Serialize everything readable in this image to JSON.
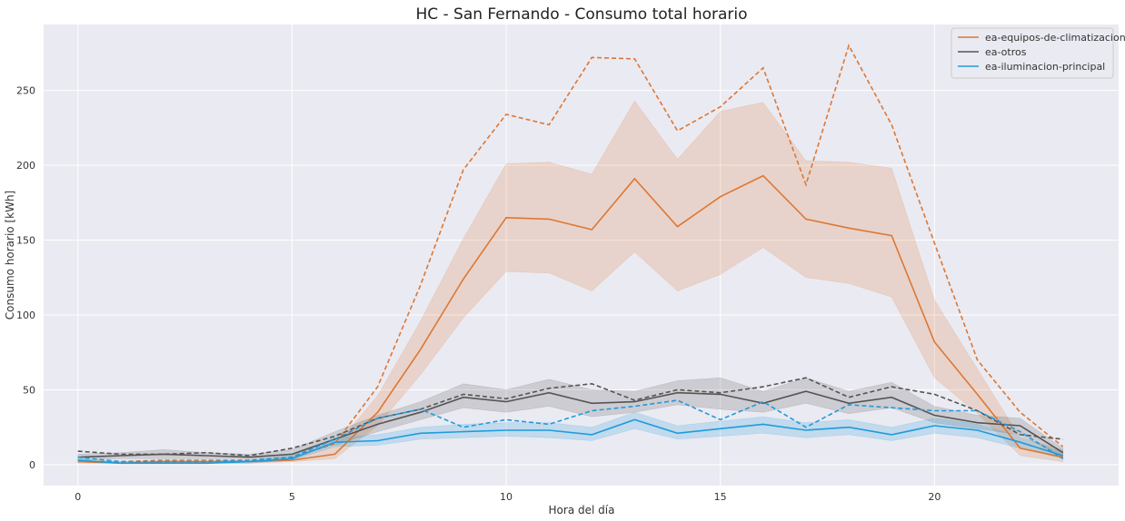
{
  "chart_data": {
    "type": "line",
    "title": "HC - San Fernando - Consumo total horario",
    "xlabel": "Hora del día",
    "ylabel": "Consumo horario [kWh]",
    "xlim": [
      -0.8,
      24.3
    ],
    "ylim": [
      -14,
      294
    ],
    "xticks": [
      0,
      5,
      10,
      15,
      20
    ],
    "yticks": [
      0,
      50,
      100,
      150,
      200,
      250
    ],
    "grid": true,
    "background": "#eaeaf2",
    "legend_position": "top-right",
    "x": [
      0,
      1,
      2,
      3,
      4,
      5,
      6,
      7,
      8,
      9,
      10,
      11,
      12,
      13,
      14,
      15,
      16,
      17,
      18,
      19,
      20,
      21,
      22,
      23
    ],
    "series": [
      {
        "name": "ea-equipos-de-climatizacion",
        "color": "#dd7733",
        "mean": [
          2,
          1,
          2,
          2,
          2,
          3,
          7,
          35,
          77,
          124,
          165,
          164,
          157,
          191,
          159,
          179,
          193,
          164,
          158,
          153,
          82,
          47,
          11,
          5
        ],
        "lower": [
          1,
          1,
          1,
          1,
          1,
          2,
          4,
          26,
          60,
          98,
          129,
          128,
          116,
          142,
          116,
          127,
          145,
          125,
          121,
          112,
          58,
          34,
          6,
          2
        ],
        "upper": [
          3,
          2,
          3,
          3,
          3,
          5,
          12,
          46,
          96,
          151,
          201,
          202,
          194,
          243,
          204,
          236,
          242,
          203,
          202,
          198,
          110,
          64,
          18,
          10
        ],
        "max": [
          2,
          2,
          3,
          3,
          3,
          5,
          14,
          52,
          120,
          197,
          234,
          227,
          272,
          271,
          223,
          239,
          265,
          187,
          280,
          227,
          148,
          70,
          35,
          12
        ]
      },
      {
        "name": "ea-otros",
        "color": "#555555",
        "mean": [
          5,
          6,
          7,
          6,
          5,
          7,
          17,
          27,
          35,
          45,
          42,
          48,
          41,
          42,
          48,
          47,
          41,
          49,
          41,
          45,
          33,
          28,
          26,
          8
        ],
        "lower": [
          3,
          4,
          4,
          4,
          4,
          5,
          13,
          22,
          30,
          38,
          35,
          39,
          32,
          35,
          40,
          37,
          35,
          41,
          34,
          38,
          28,
          24,
          20,
          5
        ],
        "upper": [
          7,
          8,
          10,
          8,
          7,
          10,
          22,
          33,
          42,
          54,
          50,
          57,
          50,
          49,
          56,
          58,
          49,
          58,
          49,
          55,
          39,
          33,
          31,
          11
        ],
        "max": [
          9,
          7,
          7,
          8,
          6,
          11,
          19,
          31,
          37,
          47,
          44,
          51,
          54,
          43,
          50,
          48,
          52,
          58,
          45,
          52,
          47,
          36,
          20,
          17
        ]
      },
      {
        "name": "ea-iluminacion-principal",
        "color": "#1f9bdb",
        "mean": [
          3,
          1,
          1,
          1,
          2,
          4,
          15,
          16,
          21,
          22,
          23,
          23,
          20,
          30,
          21,
          24,
          27,
          23,
          25,
          20,
          26,
          23,
          15,
          6
        ],
        "lower": [
          2,
          1,
          1,
          1,
          1,
          3,
          12,
          13,
          17,
          18,
          19,
          18,
          16,
          24,
          17,
          19,
          21,
          18,
          20,
          16,
          21,
          18,
          11,
          4
        ],
        "upper": [
          4,
          2,
          2,
          2,
          3,
          6,
          18,
          20,
          25,
          27,
          28,
          28,
          25,
          35,
          26,
          29,
          32,
          28,
          30,
          25,
          31,
          27,
          19,
          8
        ],
        "max": [
          5,
          2,
          2,
          2,
          3,
          5,
          17,
          31,
          37,
          25,
          30,
          27,
          36,
          39,
          43,
          30,
          42,
          25,
          40,
          38,
          36,
          36,
          22,
          4
        ]
      }
    ]
  }
}
